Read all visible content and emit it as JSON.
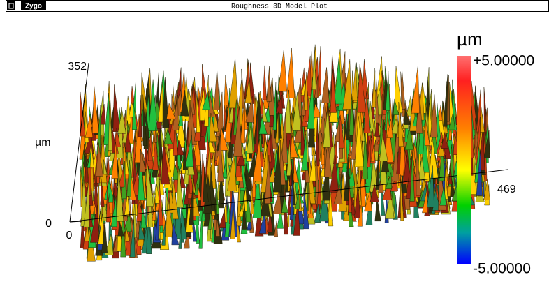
{
  "window": {
    "logo": "Zygo",
    "title": "Roughness 3D Model Plot"
  },
  "plot": {
    "axis_labels": {
      "y_max": "352",
      "z_unit": "µm",
      "z_zero": "0",
      "x_zero": "0",
      "x_max": "469"
    },
    "colorbar": {
      "unit": "µm",
      "max": "+5.00000",
      "min": "-5.00000"
    }
  }
}
